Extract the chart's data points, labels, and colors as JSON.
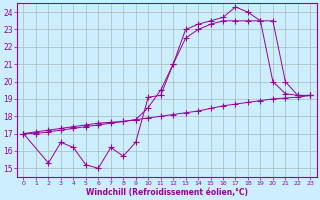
{
  "bg_color": "#cceeff",
  "line_color": "#990099",
  "grid_color": "#aacccc",
  "xlabel": "Windchill (Refroidissement éolien,°C)",
  "xlim": [
    -0.5,
    23.5
  ],
  "ylim": [
    14.5,
    24.5
  ],
  "yticks": [
    15,
    16,
    17,
    18,
    19,
    20,
    21,
    22,
    23,
    24
  ],
  "xticks": [
    0,
    1,
    2,
    3,
    4,
    5,
    6,
    7,
    8,
    9,
    10,
    11,
    12,
    13,
    14,
    15,
    16,
    17,
    18,
    19,
    20,
    21,
    22,
    23
  ],
  "line1": {
    "x": [
      0,
      1,
      2,
      3,
      4,
      5,
      6,
      7,
      8,
      9,
      10,
      11,
      12,
      13,
      14,
      15,
      16,
      17,
      18,
      19,
      20,
      21,
      22,
      23
    ],
    "y": [
      17.0,
      17.1,
      17.2,
      17.3,
      17.4,
      17.5,
      17.6,
      17.65,
      17.7,
      17.8,
      17.9,
      18.0,
      18.1,
      18.2,
      18.3,
      18.45,
      18.6,
      18.7,
      18.8,
      18.9,
      19.0,
      19.05,
      19.1,
      19.2
    ]
  },
  "line2": {
    "x": [
      0,
      2,
      3,
      4,
      5,
      6,
      7,
      8,
      9,
      10,
      11,
      12,
      13,
      14,
      15,
      16,
      17,
      18,
      19,
      20,
      21,
      22,
      23
    ],
    "y": [
      17.0,
      15.3,
      16.5,
      16.2,
      15.2,
      15.0,
      16.2,
      15.7,
      16.5,
      19.1,
      19.2,
      21.0,
      23.0,
      23.3,
      23.5,
      23.7,
      24.3,
      24.0,
      23.5,
      20.0,
      19.3,
      19.2,
      19.2
    ]
  },
  "line3": {
    "x": [
      0,
      1,
      2,
      3,
      4,
      5,
      6,
      7,
      8,
      9,
      10,
      11,
      12,
      13,
      14,
      15,
      16,
      17,
      18,
      19,
      20,
      21,
      22,
      23
    ],
    "y": [
      17.0,
      17.0,
      17.1,
      17.2,
      17.3,
      17.4,
      17.5,
      17.6,
      17.7,
      17.8,
      18.5,
      19.5,
      21.0,
      22.5,
      23.0,
      23.3,
      23.5,
      23.5,
      23.5,
      23.5,
      23.5,
      20.0,
      19.2,
      19.2
    ]
  }
}
